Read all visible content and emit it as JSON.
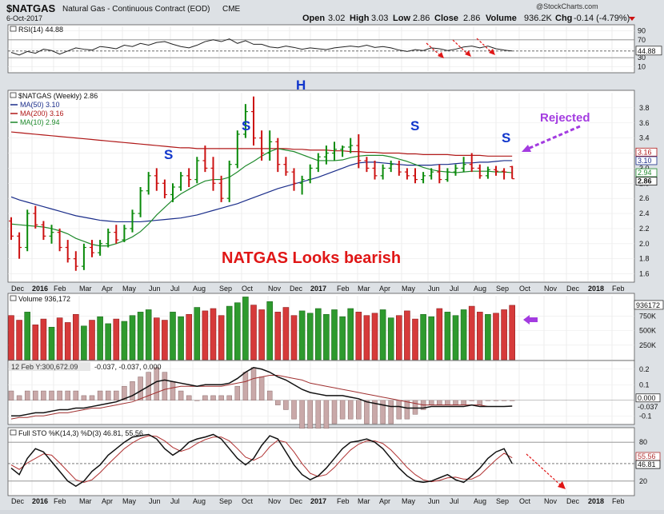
{
  "header": {
    "symbol": "$NATGAS",
    "description": "Natural Gas - Continuous Contract (EOD)",
    "exchange": "CME",
    "date": "6-Oct-2017",
    "open_label": "Open",
    "open": "3.02",
    "high_label": "High",
    "high": "3.03",
    "low_label": "Low",
    "low": "2.86",
    "close_label": "Close",
    "close": "2.86",
    "volume_label": "Volume",
    "volume": "936.2K",
    "chg_label": "Chg",
    "chg": "-0.14 (-4.79%)",
    "watermark": "@StockCharts.com"
  },
  "colors": {
    "frame": "#e8a3a8",
    "up": "#0a8a0a",
    "down": "#cc1111",
    "ma50": "#1a2d8a",
    "ma200": "#b01818",
    "ma10": "#1f8a2c",
    "annotation_red": "#e01616",
    "annotation_blue": "#1136cc",
    "annotation_purple": "#a33be0"
  },
  "annotations": {
    "h_label": "H",
    "s_label": "S",
    "rejected": "Rejected",
    "headline": "NATGAS Looks bearish"
  },
  "chart_data": [
    {
      "type": "line",
      "title": "RSI(14) 44.88",
      "ylim": [
        0,
        100
      ],
      "ticks": [
        10,
        30,
        50,
        70,
        90
      ],
      "levels": [
        30,
        70
      ],
      "last_value_label": "44.88",
      "series": [
        {
          "name": "RSI(14)",
          "values": [
            42,
            36,
            44,
            40,
            49,
            46,
            38,
            45,
            52,
            49,
            47,
            55,
            53,
            50,
            58,
            55,
            62,
            58,
            64,
            66,
            60,
            55,
            52,
            58,
            66,
            70,
            66,
            72,
            62,
            68,
            60,
            60,
            54,
            52,
            56,
            53,
            49,
            52,
            50,
            48,
            52,
            54,
            56,
            54,
            58,
            53,
            55,
            52,
            47,
            44,
            48,
            46,
            52,
            50,
            46,
            49,
            54,
            56,
            52,
            56,
            50,
            47,
            45
          ]
        }
      ]
    },
    {
      "type": "line",
      "title": "$NATGAS (Weekly) 2.86",
      "ylim": [
        1.5,
        4.0
      ],
      "ticks": [
        1.6,
        1.8,
        2.0,
        2.2,
        2.4,
        2.6,
        2.8,
        3.0,
        3.2,
        3.4,
        3.6,
        3.8
      ],
      "x_tick_labels": [
        "Dec",
        "2016",
        "Feb",
        "Mar",
        "Apr",
        "May",
        "Jun",
        "Jul",
        "Aug",
        "Sep",
        "Oct",
        "Nov",
        "Dec",
        "2017",
        "Feb",
        "Mar",
        "Apr",
        "May",
        "Jun",
        "Jul",
        "Aug",
        "Sep",
        "Oct",
        "Nov",
        "Dec",
        "2018",
        "Feb"
      ],
      "legend": [
        {
          "label": "MA(50) 3.10",
          "color": "#1a2d8a"
        },
        {
          "label": "MA(200) 3.16",
          "color": "#b01818"
        },
        {
          "label": "MA(10) 2.94",
          "color": "#1f8a2c"
        }
      ],
      "right_labels": [
        "3.16",
        "3.10",
        "2.94",
        "2.86"
      ],
      "ohlc": [
        [
          2.3,
          2.35,
          2.05,
          2.1
        ],
        [
          2.1,
          2.15,
          1.8,
          1.95
        ],
        [
          1.95,
          2.45,
          1.9,
          2.4
        ],
        [
          2.4,
          2.5,
          2.2,
          2.25
        ],
        [
          2.25,
          2.3,
          2.05,
          2.1
        ],
        [
          2.1,
          2.25,
          2.0,
          2.15
        ],
        [
          2.15,
          2.2,
          1.9,
          1.95
        ],
        [
          1.95,
          2.05,
          1.75,
          1.8
        ],
        [
          1.8,
          1.9,
          1.64,
          1.7
        ],
        [
          1.7,
          2.0,
          1.65,
          1.95
        ],
        [
          1.95,
          2.05,
          1.82,
          1.88
        ],
        [
          1.88,
          2.05,
          1.84,
          2.0
        ],
        [
          2.0,
          2.2,
          1.95,
          2.15
        ],
        [
          2.15,
          2.25,
          2.0,
          2.05
        ],
        [
          2.05,
          2.25,
          2.02,
          2.2
        ],
        [
          2.2,
          2.45,
          2.15,
          2.4
        ],
        [
          2.4,
          2.75,
          2.35,
          2.7
        ],
        [
          2.7,
          2.95,
          2.65,
          2.9
        ],
        [
          2.9,
          3.0,
          2.7,
          2.8
        ],
        [
          2.8,
          2.85,
          2.6,
          2.65
        ],
        [
          2.65,
          2.8,
          2.55,
          2.75
        ],
        [
          2.75,
          2.95,
          2.7,
          2.9
        ],
        [
          2.9,
          3.0,
          2.75,
          2.85
        ],
        [
          2.85,
          3.15,
          2.8,
          3.1
        ],
        [
          3.1,
          3.3,
          2.95,
          3.0
        ],
        [
          3.0,
          3.15,
          2.7,
          2.8
        ],
        [
          2.8,
          2.9,
          2.55,
          2.6
        ],
        [
          2.6,
          3.1,
          2.55,
          3.05
        ],
        [
          3.05,
          3.5,
          3.0,
          3.45
        ],
        [
          3.45,
          3.85,
          3.4,
          3.75
        ],
        [
          3.75,
          3.95,
          3.3,
          3.4
        ],
        [
          3.4,
          3.5,
          3.1,
          3.2
        ],
        [
          3.2,
          3.5,
          3.1,
          3.35
        ],
        [
          3.35,
          3.4,
          2.95,
          3.05
        ],
        [
          3.05,
          3.15,
          2.9,
          2.95
        ],
        [
          2.95,
          3.0,
          2.7,
          2.8
        ],
        [
          2.8,
          2.9,
          2.65,
          2.85
        ],
        [
          2.85,
          3.05,
          2.8,
          3.0
        ],
        [
          3.0,
          3.2,
          2.95,
          3.15
        ],
        [
          3.15,
          3.3,
          3.05,
          3.2
        ],
        [
          3.2,
          3.35,
          3.1,
          3.25
        ],
        [
          3.25,
          3.3,
          3.15,
          3.28
        ],
        [
          3.28,
          3.4,
          3.2,
          3.3
        ],
        [
          3.3,
          3.45,
          3.0,
          3.1
        ],
        [
          3.1,
          3.15,
          2.95,
          3.0
        ],
        [
          3.0,
          3.1,
          2.85,
          2.9
        ],
        [
          2.9,
          3.05,
          2.85,
          3.0
        ],
        [
          3.0,
          3.1,
          2.95,
          3.05
        ],
        [
          3.05,
          3.1,
          2.9,
          2.95
        ],
        [
          2.95,
          3.0,
          2.85,
          2.9
        ],
        [
          2.9,
          3.0,
          2.8,
          2.85
        ],
        [
          2.85,
          2.95,
          2.8,
          2.9
        ],
        [
          2.9,
          3.0,
          2.85,
          2.95
        ],
        [
          2.95,
          3.05,
          2.8,
          2.85
        ],
        [
          2.85,
          3.0,
          2.82,
          2.95
        ],
        [
          2.95,
          3.05,
          2.9,
          3.0
        ],
        [
          3.0,
          3.15,
          2.95,
          3.05
        ],
        [
          3.05,
          3.2,
          2.95,
          3.0
        ],
        [
          3.0,
          3.05,
          2.86,
          2.9
        ],
        [
          2.9,
          3.02,
          2.86,
          2.98
        ],
        [
          2.98,
          3.03,
          2.9,
          2.96
        ],
        [
          2.96,
          3.0,
          2.85,
          2.95
        ],
        [
          3.02,
          3.03,
          2.86,
          2.86
        ]
      ],
      "ma10": [
        2.26,
        2.25,
        2.24,
        2.23,
        2.22,
        2.2,
        2.17,
        2.13,
        2.07,
        2.03,
        1.99,
        1.97,
        1.97,
        2.0,
        2.04,
        2.09,
        2.16,
        2.26,
        2.38,
        2.48,
        2.58,
        2.66,
        2.72,
        2.78,
        2.83,
        2.85,
        2.85,
        2.88,
        2.95,
        3.03,
        3.09,
        3.16,
        3.22,
        3.26,
        3.24,
        3.22,
        3.18,
        3.14,
        3.1,
        3.1,
        3.1,
        3.11,
        3.14,
        3.16,
        3.17,
        3.17,
        3.17,
        3.15,
        3.12,
        3.09,
        3.05,
        3.01,
        2.98,
        2.96,
        2.95,
        2.94,
        2.95,
        2.96,
        2.96,
        2.96,
        2.95,
        2.95,
        2.94
      ],
      "ma50": [
        2.62,
        2.58,
        2.55,
        2.52,
        2.49,
        2.46,
        2.43,
        2.4,
        2.37,
        2.35,
        2.33,
        2.31,
        2.3,
        2.29,
        2.29,
        2.29,
        2.29,
        2.3,
        2.31,
        2.32,
        2.33,
        2.34,
        2.36,
        2.38,
        2.41,
        2.44,
        2.47,
        2.5,
        2.53,
        2.57,
        2.61,
        2.65,
        2.69,
        2.73,
        2.76,
        2.79,
        2.82,
        2.85,
        2.88,
        2.92,
        2.96,
        3.0,
        3.04,
        3.07,
        3.08,
        3.08,
        3.07,
        3.06,
        3.05,
        3.04,
        3.04,
        3.04,
        3.04,
        3.05,
        3.05,
        3.06,
        3.07,
        3.07,
        3.08,
        3.08,
        3.09,
        3.1,
        3.1
      ],
      "ma200": [
        3.48,
        3.47,
        3.46,
        3.45,
        3.44,
        3.43,
        3.42,
        3.41,
        3.4,
        3.39,
        3.38,
        3.37,
        3.36,
        3.35,
        3.34,
        3.33,
        3.32,
        3.31,
        3.3,
        3.29,
        3.28,
        3.27,
        3.27,
        3.26,
        3.26,
        3.26,
        3.26,
        3.26,
        3.26,
        3.26,
        3.26,
        3.26,
        3.26,
        3.26,
        3.26,
        3.25,
        3.25,
        3.24,
        3.24,
        3.24,
        3.23,
        3.23,
        3.22,
        3.22,
        3.21,
        3.21,
        3.2,
        3.2,
        3.2,
        3.19,
        3.19,
        3.18,
        3.18,
        3.18,
        3.18,
        3.17,
        3.17,
        3.17,
        3.17,
        3.16,
        3.16,
        3.16,
        3.16
      ]
    },
    {
      "type": "bar",
      "title": "Volume 936,172",
      "ylim": [
        0,
        1100000
      ],
      "ticks": [
        "250K",
        "500K",
        "750K"
      ],
      "ticks_values": [
        250000,
        500000,
        750000
      ],
      "last_value_label": "936172",
      "values": [
        760000,
        680000,
        820000,
        600000,
        700000,
        560000,
        720000,
        640000,
        780000,
        580000,
        680000,
        740000,
        620000,
        700000,
        660000,
        760000,
        820000,
        860000,
        720000,
        680000,
        820000,
        740000,
        780000,
        900000,
        840000,
        880000,
        760000,
        920000,
        980000,
        1080000,
        940000,
        860000,
        1000000,
        820000,
        900000,
        760000,
        840000,
        800000,
        880000,
        780000,
        860000,
        740000,
        880000,
        820000,
        760000,
        800000,
        860000,
        720000,
        760000,
        840000,
        700000,
        780000,
        740000,
        880000,
        820000,
        760000,
        860000,
        920000,
        820000,
        780000,
        800000,
        860000,
        936172
      ],
      "up": [
        0,
        0,
        1,
        0,
        0,
        1,
        0,
        0,
        0,
        1,
        0,
        1,
        1,
        0,
        1,
        1,
        1,
        1,
        0,
        0,
        1,
        1,
        0,
        1,
        0,
        0,
        0,
        1,
        1,
        1,
        0,
        0,
        1,
        0,
        0,
        0,
        1,
        1,
        1,
        1,
        1,
        1,
        1,
        0,
        0,
        0,
        1,
        1,
        0,
        0,
        0,
        1,
        1,
        0,
        1,
        1,
        1,
        0,
        0,
        1,
        0,
        0,
        0
      ]
    },
    {
      "type": "line",
      "title": "MACD",
      "header_values": [
        "12 Feb Y:300,672.09",
        "-0.037, -0.037, 0.000"
      ],
      "ylim": [
        -0.15,
        0.25
      ],
      "ticks": [
        -0.1,
        0.1,
        0.2
      ],
      "right_labels": [
        "0.000",
        "-0.037"
      ],
      "series": [
        {
          "name": "MACD",
          "values": [
            -0.1,
            -0.1,
            -0.09,
            -0.08,
            -0.08,
            -0.07,
            -0.06,
            -0.06,
            -0.05,
            -0.05,
            -0.04,
            -0.03,
            -0.02,
            -0.01,
            0.01,
            0.03,
            0.06,
            0.09,
            0.12,
            0.13,
            0.12,
            0.11,
            0.1,
            0.09,
            0.1,
            0.1,
            0.1,
            0.11,
            0.14,
            0.18,
            0.21,
            0.2,
            0.18,
            0.15,
            0.13,
            0.1,
            0.07,
            0.05,
            0.04,
            0.03,
            0.03,
            0.03,
            0.02,
            0.01,
            -0.01,
            -0.02,
            -0.03,
            -0.04,
            -0.04,
            -0.05,
            -0.05,
            -0.05,
            -0.04,
            -0.04,
            -0.04,
            -0.04,
            -0.04,
            -0.03,
            -0.04,
            -0.04,
            -0.04,
            -0.04,
            -0.037
          ]
        },
        {
          "name": "Signal",
          "values": [
            -0.12,
            -0.11,
            -0.11,
            -0.1,
            -0.1,
            -0.09,
            -0.08,
            -0.08,
            -0.07,
            -0.06,
            -0.05,
            -0.05,
            -0.04,
            -0.03,
            -0.02,
            -0.01,
            0.01,
            0.03,
            0.05,
            0.07,
            0.08,
            0.09,
            0.09,
            0.09,
            0.09,
            0.09,
            0.09,
            0.1,
            0.11,
            0.12,
            0.14,
            0.15,
            0.16,
            0.16,
            0.15,
            0.14,
            0.13,
            0.11,
            0.1,
            0.09,
            0.08,
            0.07,
            0.06,
            0.05,
            0.04,
            0.03,
            0.02,
            0.01,
            0.0,
            -0.01,
            -0.02,
            -0.03,
            -0.03,
            -0.03,
            -0.03,
            -0.03,
            -0.03,
            -0.03,
            -0.03,
            -0.04,
            -0.04,
            -0.04,
            -0.037
          ]
        }
      ]
    },
    {
      "type": "line",
      "title": "Full STO %K(14,3) %D(3) 46.81, 55.56",
      "ylim": [
        0,
        100
      ],
      "ticks": [
        20,
        80
      ],
      "levels": [
        20,
        80
      ],
      "right_labels": [
        "55.56",
        "46.81"
      ],
      "x_tick_labels": [
        "Dec",
        "2016",
        "Feb",
        "Mar",
        "Apr",
        "May",
        "Jun",
        "Jul",
        "Aug",
        "Sep",
        "Oct",
        "Nov",
        "Dec",
        "2017",
        "Feb",
        "Mar",
        "Apr",
        "May",
        "Jun",
        "Jul",
        "Aug",
        "Sep",
        "Oct",
        "Nov",
        "Dec",
        "2018",
        "Feb"
      ],
      "series": [
        {
          "name": "%K",
          "values": [
            40,
            30,
            55,
            70,
            65,
            50,
            35,
            20,
            12,
            20,
            35,
            45,
            60,
            70,
            80,
            88,
            90,
            92,
            85,
            70,
            60,
            68,
            80,
            85,
            88,
            92,
            85,
            70,
            55,
            45,
            55,
            75,
            90,
            85,
            65,
            45,
            30,
            22,
            28,
            40,
            55,
            70,
            80,
            82,
            85,
            80,
            70,
            55,
            40,
            28,
            20,
            18,
            20,
            25,
            30,
            22,
            18,
            28,
            40,
            55,
            65,
            70,
            47
          ]
        },
        {
          "name": "%D",
          "values": [
            45,
            38,
            48,
            55,
            62,
            60,
            48,
            35,
            22,
            18,
            22,
            33,
            46,
            58,
            70,
            79,
            86,
            90,
            89,
            82,
            72,
            66,
            70,
            78,
            84,
            88,
            88,
            82,
            70,
            57,
            52,
            58,
            73,
            83,
            80,
            65,
            47,
            32,
            27,
            30,
            41,
            55,
            68,
            77,
            82,
            82,
            78,
            68,
            55,
            41,
            30,
            22,
            19,
            21,
            25,
            26,
            23,
            23,
            29,
            41,
            53,
            63,
            56
          ]
        }
      ],
      "target_arrow": true
    }
  ]
}
